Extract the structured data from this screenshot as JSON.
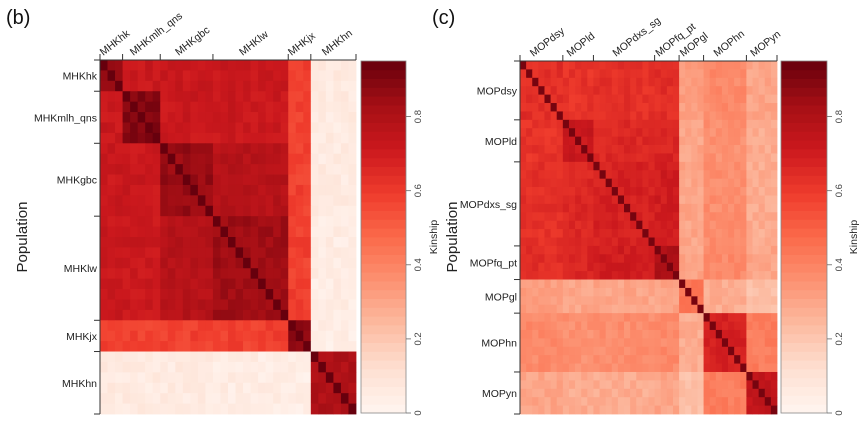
{
  "chart_data": [
    {
      "type": "heatmap",
      "panel_label": "(b)",
      "ylabel": "Population",
      "colorbar": {
        "title": "Kinship",
        "ticks": [
          "0",
          "0.2",
          "0.4",
          "0.6",
          "0.8"
        ],
        "tick_values": [
          0,
          0.2,
          0.4,
          0.6,
          0.8
        ],
        "range": [
          0,
          0.95
        ]
      },
      "colormap": [
        "#fff5f0",
        "#fee0d2",
        "#fcbba1",
        "#fc9272",
        "#fb6a4a",
        "#ef3b2c",
        "#cb181d",
        "#a50f15",
        "#67000d"
      ],
      "groups": [
        {
          "name": "MHKhk",
          "n": 3
        },
        {
          "name": "MHKmlh_qns",
          "n": 5
        },
        {
          "name": "MHKgbc",
          "n": 7
        },
        {
          "name": "MHKlw",
          "n": 10
        },
        {
          "name": "MHKjx",
          "n": 3
        },
        {
          "name": "MHKhn",
          "n": 6
        }
      ],
      "diagonal_value": 0.95,
      "block_values": [
        [
          0.88,
          0.72,
          0.72,
          0.72,
          0.58,
          0.06
        ],
        [
          0.72,
          0.9,
          0.72,
          0.72,
          0.58,
          0.06
        ],
        [
          0.72,
          0.72,
          0.86,
          0.78,
          0.58,
          0.06
        ],
        [
          0.72,
          0.72,
          0.78,
          0.84,
          0.58,
          0.05
        ],
        [
          0.58,
          0.58,
          0.58,
          0.58,
          0.88,
          0.04
        ],
        [
          0.06,
          0.06,
          0.06,
          0.05,
          0.04,
          0.8
        ]
      ]
    },
    {
      "type": "heatmap",
      "panel_label": "(c)",
      "ylabel": "Population",
      "colorbar": {
        "title": "Kinship",
        "ticks": [
          "0",
          "0.2",
          "0.4",
          "0.6",
          "0.8"
        ],
        "tick_values": [
          0,
          0.2,
          0.4,
          0.6,
          0.8
        ],
        "range": [
          0,
          0.95
        ]
      },
      "colormap": [
        "#fff5f0",
        "#fee0d2",
        "#fcbba1",
        "#fc9272",
        "#fb6a4a",
        "#ef3b2c",
        "#cb181d",
        "#a50f15",
        "#67000d"
      ],
      "groups": [
        {
          "name": "MOPdsy",
          "n": 7
        },
        {
          "name": "MOPld",
          "n": 5
        },
        {
          "name": "MOPdxs_sg",
          "n": 10
        },
        {
          "name": "MOPfq_pt",
          "n": 4
        },
        {
          "name": "MOPgl",
          "n": 4
        },
        {
          "name": "MOPhn",
          "n": 7
        },
        {
          "name": "MOPyn",
          "n": 5
        }
      ],
      "diagonal_value": 0.92,
      "block_values": [
        [
          0.64,
          0.62,
          0.63,
          0.64,
          0.32,
          0.38,
          0.3
        ],
        [
          0.62,
          0.72,
          0.66,
          0.67,
          0.3,
          0.36,
          0.28
        ],
        [
          0.63,
          0.66,
          0.68,
          0.7,
          0.3,
          0.37,
          0.28
        ],
        [
          0.64,
          0.67,
          0.7,
          0.8,
          0.3,
          0.38,
          0.3
        ],
        [
          0.32,
          0.3,
          0.3,
          0.3,
          0.45,
          0.28,
          0.22
        ],
        [
          0.38,
          0.36,
          0.37,
          0.38,
          0.28,
          0.68,
          0.42
        ],
        [
          0.3,
          0.28,
          0.28,
          0.3,
          0.22,
          0.42,
          0.74
        ]
      ]
    }
  ]
}
